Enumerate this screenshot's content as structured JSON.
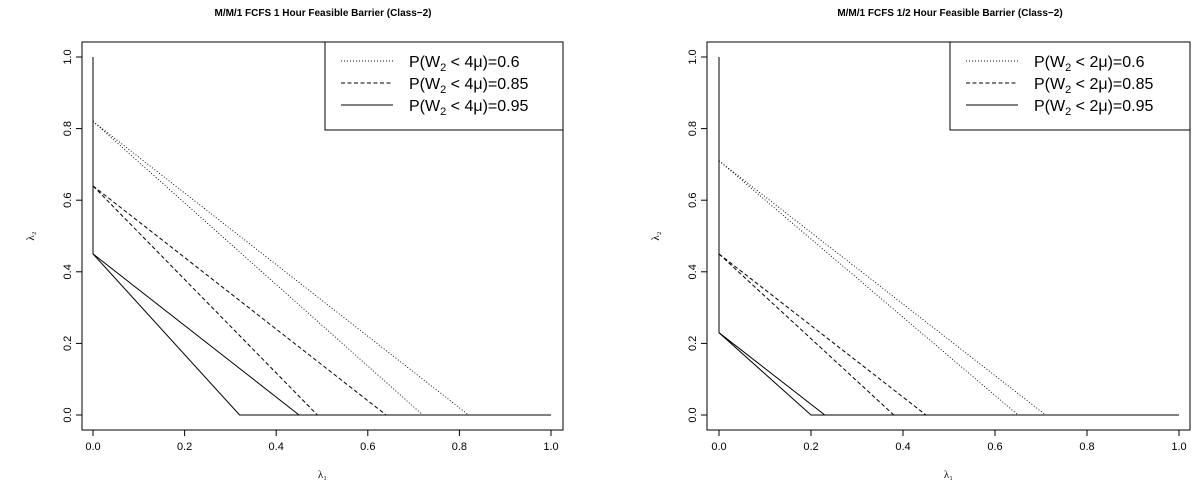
{
  "chart_data": [
    {
      "type": "line",
      "title": "M/M/1 FCFS 1 Hour Feasible Barrier (Class−2)",
      "xlabel": "λ₁",
      "ylabel": "λ₂",
      "xlim": [
        0,
        1
      ],
      "ylim": [
        0,
        1
      ],
      "xticks": [
        "0.0",
        "0.2",
        "0.4",
        "0.6",
        "0.8",
        "1.0"
      ],
      "yticks": [
        "0.0",
        "0.2",
        "0.4",
        "0.6",
        "0.8",
        "1.0"
      ],
      "legend_position": "top-right",
      "legend": [
        {
          "pre": "P(W",
          "sub": "2",
          "post": " < 4μ)=0.6",
          "style": "dotted"
        },
        {
          "pre": "P(W",
          "sub": "2",
          "post": " < 4μ)=0.85",
          "style": "dashed"
        },
        {
          "pre": "P(W",
          "sub": "2",
          "post": " < 4μ)=0.95",
          "style": "solid"
        }
      ],
      "series": [
        {
          "style": "dotted",
          "points": [
            [
              0,
              0.82
            ],
            [
              0.82,
              0
            ],
            [
              1.0,
              0
            ]
          ]
        },
        {
          "style": "dotted",
          "points": [
            [
              0,
              0.82
            ],
            [
              0.72,
              0
            ]
          ]
        },
        {
          "style": "dashed",
          "points": [
            [
              0,
              0.64
            ],
            [
              0.64,
              0
            ],
            [
              1.0,
              0
            ]
          ]
        },
        {
          "style": "dashed",
          "points": [
            [
              0,
              0.64
            ],
            [
              0.49,
              0
            ]
          ]
        },
        {
          "style": "solid",
          "points": [
            [
              0,
              1.0
            ],
            [
              0,
              0.45
            ],
            [
              0.45,
              0
            ],
            [
              1.0,
              0
            ]
          ]
        },
        {
          "style": "solid",
          "points": [
            [
              0,
              0.45
            ],
            [
              0.32,
              0
            ],
            [
              1.0,
              0
            ]
          ]
        }
      ]
    },
    {
      "type": "line",
      "title": "M/M/1 FCFS 1/2 Hour Feasible Barrier (Class−2)",
      "xlabel": "λ₁",
      "ylabel": "λ₂",
      "xlim": [
        0,
        1
      ],
      "ylim": [
        0,
        1
      ],
      "xticks": [
        "0.0",
        "0.2",
        "0.4",
        "0.6",
        "0.8",
        "1.0"
      ],
      "yticks": [
        "0.0",
        "0.2",
        "0.4",
        "0.6",
        "0.8",
        "1.0"
      ],
      "legend_position": "top-right",
      "legend": [
        {
          "pre": "P(W",
          "sub": "2",
          "post": " < 2μ)=0.6",
          "style": "dotted"
        },
        {
          "pre": "P(W",
          "sub": "2",
          "post": " < 2μ)=0.85",
          "style": "dashed"
        },
        {
          "pre": "P(W",
          "sub": "2",
          "post": " < 2μ)=0.95",
          "style": "solid"
        }
      ],
      "series": [
        {
          "style": "dotted",
          "points": [
            [
              0,
              0.71
            ],
            [
              0.71,
              0
            ],
            [
              1.0,
              0
            ]
          ]
        },
        {
          "style": "dotted",
          "points": [
            [
              0,
              0.71
            ],
            [
              0.65,
              0
            ]
          ]
        },
        {
          "style": "dashed",
          "points": [
            [
              0,
              0.45
            ],
            [
              0.45,
              0
            ],
            [
              1.0,
              0
            ]
          ]
        },
        {
          "style": "dashed",
          "points": [
            [
              0,
              0.45
            ],
            [
              0.38,
              0
            ]
          ]
        },
        {
          "style": "solid",
          "points": [
            [
              0,
              1.0
            ],
            [
              0,
              0.23
            ],
            [
              0.23,
              0
            ],
            [
              1.0,
              0
            ]
          ]
        },
        {
          "style": "solid",
          "points": [
            [
              0,
              0.23
            ],
            [
              0.2,
              0
            ],
            [
              1.0,
              0
            ]
          ]
        }
      ]
    }
  ]
}
